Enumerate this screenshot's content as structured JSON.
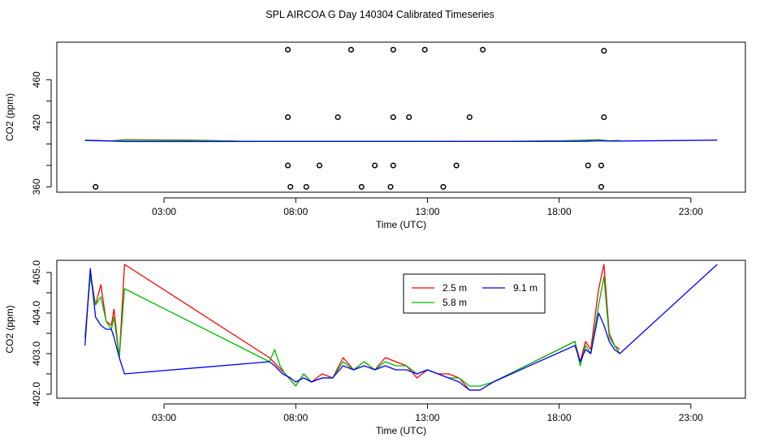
{
  "title": "SPL AIRCOA G  Day 140304  Calibrated Timeseries",
  "chart_data": [
    {
      "type": "scatter",
      "xlabel": "Time (UTC)",
      "ylabel": "CO2 (ppm)",
      "x_ticks": [
        3,
        8,
        13,
        18,
        23
      ],
      "x_tick_labels": [
        "03:00",
        "08:00",
        "13:00",
        "18:00",
        "23:00"
      ],
      "y_ticks": [
        360,
        380,
        400,
        420,
        440,
        460
      ],
      "y_tick_labels": [
        "360",
        "",
        "",
        "420",
        "",
        "460"
      ],
      "xlim": [
        -1.07,
        25.07
      ],
      "ylim": [
        355,
        495
      ],
      "calibration_points": [
        {
          "x": 0.4,
          "y": 360
        },
        {
          "x": 7.8,
          "y": 360
        },
        {
          "x": 8.4,
          "y": 360
        },
        {
          "x": 10.5,
          "y": 360
        },
        {
          "x": 11.6,
          "y": 360
        },
        {
          "x": 13.6,
          "y": 360
        },
        {
          "x": 19.6,
          "y": 360
        },
        {
          "x": 7.7,
          "y": 380
        },
        {
          "x": 8.9,
          "y": 380
        },
        {
          "x": 11.0,
          "y": 380
        },
        {
          "x": 11.7,
          "y": 380
        },
        {
          "x": 14.1,
          "y": 380
        },
        {
          "x": 19.1,
          "y": 380
        },
        {
          "x": 19.6,
          "y": 380
        },
        {
          "x": 7.7,
          "y": 425
        },
        {
          "x": 9.6,
          "y": 425
        },
        {
          "x": 11.7,
          "y": 425
        },
        {
          "x": 12.3,
          "y": 425
        },
        {
          "x": 14.6,
          "y": 425
        },
        {
          "x": 19.7,
          "y": 425
        },
        {
          "x": 7.7,
          "y": 488
        },
        {
          "x": 10.1,
          "y": 488
        },
        {
          "x": 11.7,
          "y": 488
        },
        {
          "x": 12.9,
          "y": 488
        },
        {
          "x": 15.1,
          "y": 488
        },
        {
          "x": 19.7,
          "y": 487
        }
      ],
      "series": [
        {
          "name": "2.5 m",
          "color": "#ff0000",
          "x": [
            0.0,
            1.0,
            1.5,
            4.0,
            6.0,
            9.0,
            12.0,
            15.0,
            18.0,
            19.5,
            19.9,
            20.3
          ],
          "y": [
            403.2,
            402.8,
            404.0,
            403.6,
            402.6,
            402.5,
            402.6,
            402.4,
            402.8,
            404.0,
            403.0,
            403.2
          ]
        },
        {
          "name": "5.8 m",
          "color": "#00bb00",
          "x": [
            0.0,
            1.0,
            1.5,
            4.0,
            6.0,
            9.0,
            12.0,
            15.0,
            18.0,
            19.5,
            19.9,
            20.3
          ],
          "y": [
            403.2,
            402.8,
            403.6,
            403.2,
            402.6,
            402.5,
            402.6,
            402.4,
            402.8,
            403.8,
            403.0,
            403.2
          ]
        },
        {
          "name": "9.1 m",
          "color": "#0000ff",
          "x": [
            0.0,
            1.0,
            1.5,
            4.0,
            7.0,
            10.0,
            13.0,
            16.0,
            19.0,
            19.5,
            20.0,
            24.0
          ],
          "y": [
            403.5,
            402.8,
            402.3,
            402.3,
            402.4,
            402.4,
            402.4,
            402.4,
            402.5,
            403.0,
            402.7,
            403.6
          ]
        }
      ]
    },
    {
      "type": "line",
      "xlabel": "Time (UTC)",
      "ylabel": "CO2 (ppm)",
      "x_ticks": [
        3,
        8,
        13,
        18,
        23
      ],
      "x_tick_labels": [
        "03:00",
        "08:00",
        "13:00",
        "18:00",
        "23:00"
      ],
      "y_ticks": [
        402.0,
        402.5,
        403.0,
        403.5,
        404.0,
        404.5,
        405.0
      ],
      "y_tick_labels": [
        "402.0",
        "",
        "403.0",
        "",
        "404.0",
        "",
        "405.0"
      ],
      "xlim": [
        -1.07,
        25.07
      ],
      "ylim": [
        401.9,
        405.3
      ],
      "legend": {
        "position": "top-center",
        "items": [
          "2.5 m",
          "5.8 m",
          "9.1 m"
        ]
      },
      "series": [
        {
          "name": "2.5 m",
          "color": "#ff0000",
          "x": [
            0.0,
            0.2,
            0.4,
            0.6,
            0.8,
            1.0,
            1.1,
            1.3,
            1.5,
            7.0,
            7.3,
            7.6,
            8.0,
            8.3,
            8.6,
            9.0,
            9.4,
            9.8,
            10.2,
            10.6,
            11.0,
            11.4,
            11.8,
            12.2,
            12.6,
            13.0,
            13.4,
            13.8,
            14.2,
            14.6,
            15.0,
            15.5,
            18.6,
            18.8,
            19.0,
            19.2,
            19.5,
            19.7,
            19.9,
            20.1,
            20.3
          ],
          "y": [
            403.4,
            405.0,
            404.2,
            404.7,
            403.8,
            403.7,
            404.1,
            402.9,
            405.2,
            402.9,
            402.7,
            402.5,
            402.2,
            402.5,
            402.3,
            402.5,
            402.4,
            402.9,
            402.6,
            402.8,
            402.6,
            402.9,
            402.8,
            402.7,
            402.4,
            402.6,
            402.5,
            402.5,
            402.4,
            402.1,
            402.1,
            402.3,
            403.3,
            402.8,
            403.3,
            403.1,
            404.6,
            405.2,
            403.5,
            403.2,
            403.1
          ]
        },
        {
          "name": "5.8 m",
          "color": "#00bb00",
          "x": [
            0.0,
            0.2,
            0.4,
            0.6,
            0.8,
            1.0,
            1.1,
            1.3,
            1.5,
            7.0,
            7.2,
            7.4,
            7.6,
            8.0,
            8.3,
            8.6,
            9.0,
            9.4,
            9.8,
            10.2,
            10.6,
            11.0,
            11.4,
            11.8,
            12.2,
            12.6,
            13.0,
            13.4,
            13.8,
            14.2,
            14.6,
            15.0,
            15.5,
            18.6,
            18.8,
            19.0,
            19.2,
            19.5,
            19.7,
            19.9,
            20.1,
            20.3
          ],
          "y": [
            403.4,
            404.9,
            404.2,
            404.4,
            403.8,
            403.6,
            403.9,
            402.9,
            404.6,
            402.8,
            403.1,
            402.7,
            402.5,
            402.2,
            402.5,
            402.3,
            402.4,
            402.4,
            402.8,
            402.6,
            402.8,
            402.6,
            402.8,
            402.7,
            402.7,
            402.5,
            402.6,
            402.5,
            402.4,
            402.4,
            402.2,
            402.2,
            402.3,
            403.3,
            402.7,
            403.2,
            403.0,
            404.2,
            404.9,
            403.4,
            403.2,
            403.0
          ]
        },
        {
          "name": "9.1 m",
          "color": "#0000ff",
          "x": [
            0.0,
            0.2,
            0.4,
            0.6,
            0.8,
            1.0,
            1.1,
            1.3,
            1.5,
            7.0,
            7.2,
            7.5,
            7.8,
            8.0,
            8.3,
            8.6,
            9.0,
            9.4,
            9.8,
            10.2,
            10.6,
            11.0,
            11.4,
            11.8,
            12.2,
            12.6,
            13.0,
            13.4,
            13.8,
            14.2,
            14.6,
            15.0,
            15.5,
            18.6,
            18.8,
            19.0,
            19.2,
            19.5,
            19.7,
            19.9,
            20.1,
            20.3,
            24.0
          ],
          "y": [
            403.2,
            405.1,
            403.9,
            403.7,
            403.6,
            403.6,
            403.4,
            402.9,
            402.5,
            402.8,
            402.7,
            402.5,
            402.4,
            402.3,
            402.4,
            402.3,
            402.4,
            402.4,
            402.7,
            402.6,
            402.7,
            402.6,
            402.7,
            402.6,
            402.6,
            402.5,
            402.6,
            402.5,
            402.4,
            402.3,
            402.1,
            402.1,
            402.3,
            403.2,
            402.8,
            403.1,
            403.0,
            404.0,
            403.7,
            403.3,
            403.1,
            403.0,
            405.2
          ]
        }
      ]
    }
  ]
}
